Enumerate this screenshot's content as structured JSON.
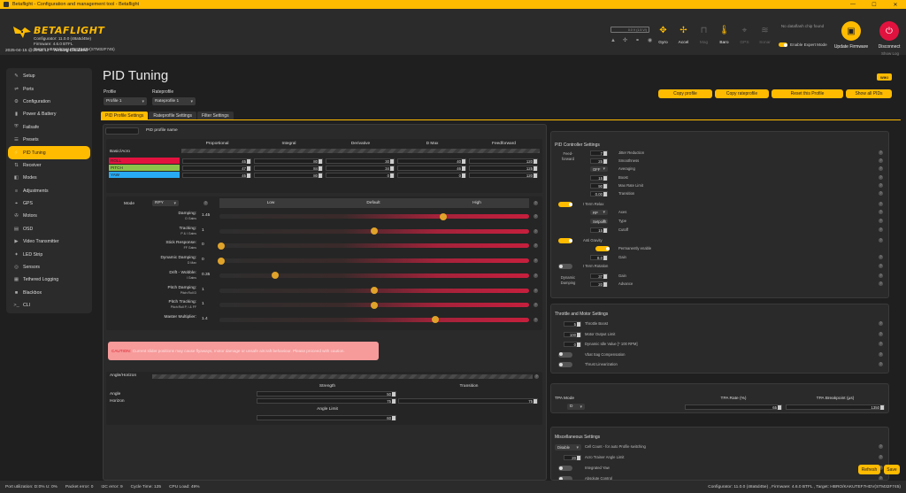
{
  "window": {
    "title": "Betaflight - Configuration and management tool - Betaflight"
  },
  "header": {
    "brand": "BETAFLIGHT",
    "configurator": "Configurator: 11.0.0 (48a5d45e)",
    "firmware": "Firmware: 4.6.0 BTFL",
    "target": "Target: HBRO/KAKUTEF7HDV(STM32F745)",
    "status_time": "2025-04-15 @16:51:12 –",
    "status_state": "Arming Disabled",
    "battery": "0.0 V (1.5 V/)",
    "sensors": [
      {
        "label": "Gyro",
        "icon": "gyro-icon",
        "on": true
      },
      {
        "label": "Accel",
        "icon": "accel-icon",
        "on": true
      },
      {
        "label": "Mag",
        "icon": "mag-icon",
        "on": false
      },
      {
        "label": "Baro",
        "icon": "baro-icon",
        "on": true
      },
      {
        "label": "GPS",
        "icon": "gps-icon",
        "on": false
      },
      {
        "label": "Sonar",
        "icon": "sonar-icon",
        "on": false
      }
    ],
    "dataflash": "No dataflash chip found",
    "expert_mode": "Enable Expert Mode",
    "update_firmware": "Update Firmware",
    "disconnect": "Disconnect",
    "show_log": "Show Log"
  },
  "sidebar": {
    "items": [
      {
        "label": "Setup",
        "icon": "wrench-icon"
      },
      {
        "label": "Ports",
        "icon": "plug-icon"
      },
      {
        "label": "Configuration",
        "icon": "gear-icon"
      },
      {
        "label": "Power & Battery",
        "icon": "battery-icon"
      },
      {
        "label": "Failsafe",
        "icon": "failsafe-icon"
      },
      {
        "label": "Presets",
        "icon": "presets-icon"
      },
      {
        "label": "PID Tuning",
        "icon": "pid-icon",
        "active": true
      },
      {
        "label": "Receiver",
        "icon": "receiver-icon"
      },
      {
        "label": "Modes",
        "icon": "modes-icon"
      },
      {
        "label": "Adjustments",
        "icon": "adjustments-icon"
      },
      {
        "label": "GPS",
        "icon": "gps-icon"
      },
      {
        "label": "Motors",
        "icon": "motor-icon"
      },
      {
        "label": "OSD",
        "icon": "osd-icon"
      },
      {
        "label": "Video Transmitter",
        "icon": "vtx-icon"
      },
      {
        "label": "LED Strip",
        "icon": "led-icon"
      },
      {
        "label": "Sensors",
        "icon": "sensors-icon"
      },
      {
        "label": "Tethered Logging",
        "icon": "log-icon"
      },
      {
        "label": "Blackbox",
        "icon": "blackbox-icon"
      },
      {
        "label": "CLI",
        "icon": "cli-icon"
      }
    ]
  },
  "main": {
    "title": "PID Tuning",
    "wiki": "WIKI",
    "profile_label": "Profile",
    "profile_value": "Profile 1",
    "rateprofile_label": "Rateprofile",
    "rateprofile_value": "Rateprofile 1",
    "buttons": [
      "Copy profile",
      "Copy rateprofile",
      "Reset this Profile",
      "Show all PIDs"
    ],
    "tabs": [
      "PID Profile Settings",
      "Rateprofile Settings",
      "Filter Settings"
    ],
    "pid_profile_name": "PID profile name",
    "pid_table": {
      "headers": [
        "Proportional",
        "Integral",
        "Derivative",
        "D Max",
        "Feedforward"
      ],
      "group": "Basic/Acro",
      "rows": [
        {
          "axis": "ROLL",
          "color": "#e2123f",
          "values": [
            "45",
            "80",
            "30",
            "40",
            "120"
          ]
        },
        {
          "axis": "PITCH",
          "color": "#8bc34a",
          "values": [
            "47",
            "84",
            "34",
            "46",
            "125"
          ]
        },
        {
          "axis": "YAW",
          "color": "#29aaf4",
          "values": [
            "45",
            "80",
            "0",
            "0",
            "120"
          ]
        }
      ]
    },
    "sliders": {
      "mode_label": "Mode",
      "mode_value": "RPY",
      "col_low": "Low",
      "col_default": "Default",
      "col_high": "High",
      "rows": [
        {
          "label": "Damping:",
          "sub": "D Gains",
          "value": "1.45",
          "pos": 0.725
        },
        {
          "label": "Tracking:",
          "sub": "P & I Gains",
          "value": "1",
          "pos": 0.5
        },
        {
          "label": "Stick Response:",
          "sub": "FF Gains",
          "value": "0",
          "pos": 0.0
        },
        {
          "label": "Dynamic Damping:",
          "sub": "D Max",
          "value": "0",
          "pos": 0.0
        },
        {
          "label": "Drift - Wobble:",
          "sub": "I Gains",
          "value": "0.35",
          "pos": 0.175
        },
        {
          "label": "Pitch Damping:",
          "sub": "Pitch:Roll D",
          "value": "1",
          "pos": 0.5
        },
        {
          "label": "Pitch Tracking:",
          "sub": "Pitch:Roll P, I & FF",
          "value": "1",
          "pos": 0.5
        },
        {
          "label": "Master Multiplier:",
          "sub": "",
          "value": "1.4",
          "pos": 0.7
        }
      ]
    },
    "caution_title": "CAUTION:",
    "caution_text": "Current slider positions may cause flyaways, motor damage or unsafe aircraft behaviour. Please proceed with caution.",
    "angle_horizon": {
      "title": "Angle/Horizon",
      "col_strength": "Strength",
      "col_transition": "Transition",
      "angle": "Angle",
      "horizon": "Horizon",
      "angle_strength": "50",
      "horizon_strength": "75",
      "horizon_transition": "75",
      "angle_limit_label": "Angle Limit",
      "angle_limit": "60"
    },
    "pid_controller": {
      "title": "PID Controller Settings",
      "feedforward": "Feed-forward",
      "ff_jitter": {
        "value": "7",
        "label": "Jitter Reduction"
      },
      "ff_smooth": {
        "value": "25",
        "label": "Smoothness"
      },
      "ff_avg": {
        "value": "OFF",
        "label": "Averaging"
      },
      "ff_boost": {
        "value": "15",
        "label": "Boost"
      },
      "ff_maxrate": {
        "value": "90",
        "label": "Max Rate Limit"
      },
      "ff_transition": {
        "value": "0.00",
        "label": "Transition"
      },
      "iterm_relax": "I Term Relax",
      "relax_axes": {
        "value": "RP",
        "label": "Axes"
      },
      "relax_type": {
        "value": "Setpoint",
        "label": "Type"
      },
      "relax_cutoff": {
        "value": "15",
        "label": "Cutoff"
      },
      "anti_gravity": "Anti Gravity",
      "perm_enable": "Permanently enable",
      "ag_gain": {
        "value": "8.0",
        "label": "Gain"
      },
      "iterm_rotation": "I Term Rotation",
      "dyn_damping": "Dynamic Damping",
      "dd_gain": {
        "value": "37",
        "label": "Gain"
      },
      "dd_adv": {
        "value": "20",
        "label": "Advance"
      }
    },
    "throttle": {
      "title": "Throttle and Motor Settings",
      "rows": [
        {
          "value": "5",
          "label": "Throttle Boost",
          "type": "num"
        },
        {
          "value": "100",
          "label": "Motor Output Limit",
          "type": "num"
        },
        {
          "value": "0",
          "label": "Dynamic Idle Value [* 100 RPM]",
          "type": "num"
        },
        {
          "value": "",
          "label": "Vbat Sag Compensation",
          "type": "toggle"
        },
        {
          "value": "",
          "label": "Thrust Linearization",
          "type": "toggle"
        }
      ]
    },
    "tpa": {
      "mode_label": "TPA Mode",
      "mode_value": "D",
      "rate_label": "TPA Rate (%)",
      "rate_value": "65",
      "bp_label": "TPA Breakpoint (µs)",
      "bp_value": "1350"
    },
    "misc": {
      "title": "Miscellaneous Settings",
      "rows": [
        {
          "value": "Disable",
          "label": "Cell Count - for auto Profile switching"
        },
        {
          "value": "20",
          "label": "Acro Trainer Angle Limit"
        },
        {
          "value": "",
          "label": "Integrated Yaw"
        },
        {
          "value": "",
          "label": "Absolute Control"
        }
      ]
    },
    "refresh": "Refresh",
    "save": "Save"
  },
  "statusbar": {
    "port": "Port utilization: D:0% U: 0%",
    "packet": "Packet error: 0",
    "i2c": "I2C error: 9",
    "cycle": "Cycle Time: 125",
    "cpu": "CPU Load: 49%",
    "right": "Configurator: 11.0.0 (48a5d45e) , Firmware: 4.6.0 BTFL , Target: HBRO/KAKUTEF7HDV(STM32F745)"
  },
  "colors": {
    "accent": "#ffbb00",
    "danger": "#e2123f"
  }
}
